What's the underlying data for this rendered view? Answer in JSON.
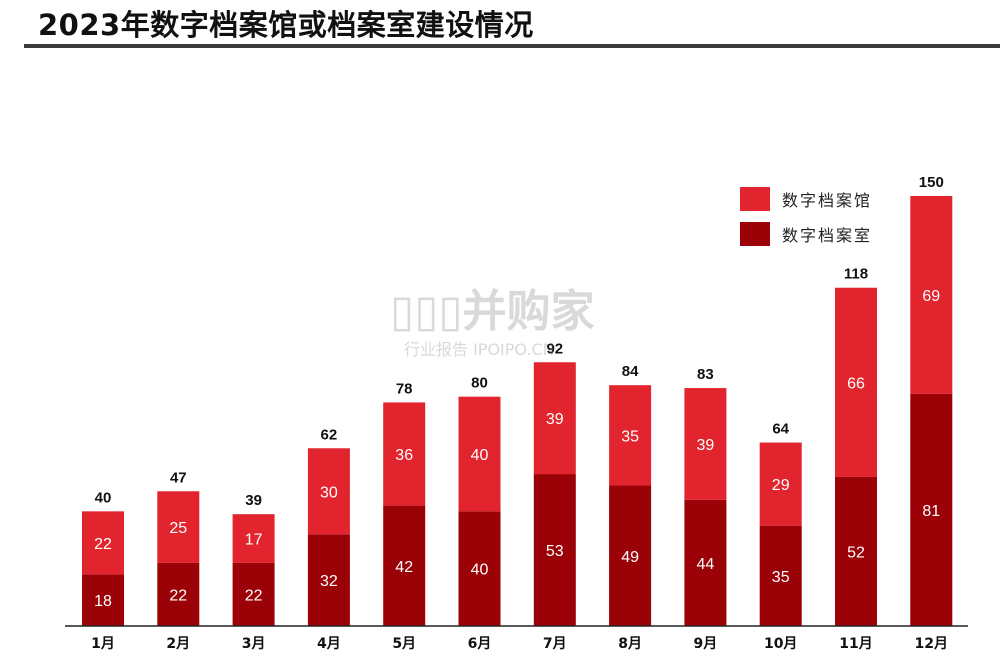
{
  "title": "2023年数字档案馆或档案室建设情况",
  "colors": {
    "top_series": "#e1242d",
    "bottom_series": "#9b0207",
    "axis": "#222222"
  },
  "watermark": {
    "logo": "▯▯▯并购家",
    "sub": "行业报告 IPOIPO.CN"
  },
  "chart_data": {
    "type": "bar",
    "stacked": true,
    "title": "2023年数字档案馆或档案室建设情况",
    "categories": [
      "1月",
      "2月",
      "3月",
      "4月",
      "5月",
      "6月",
      "7月",
      "8月",
      "9月",
      "10月",
      "11月",
      "12月"
    ],
    "series": [
      {
        "name": "数字档案室",
        "color": "#9b0207",
        "values": [
          18,
          22,
          22,
          32,
          42,
          40,
          53,
          49,
          44,
          35,
          52,
          81
        ]
      },
      {
        "name": "数字档案馆",
        "color": "#e1242d",
        "values": [
          22,
          25,
          17,
          30,
          36,
          40,
          39,
          35,
          39,
          29,
          66,
          69
        ]
      }
    ],
    "totals": [
      40,
      47,
      39,
      62,
      78,
      80,
      92,
      84,
      83,
      64,
      118,
      150
    ],
    "ylim": [
      0,
      150
    ],
    "grid": false,
    "legend_position": "upper-right"
  },
  "legend": [
    {
      "label": "数字档案馆",
      "color": "#e1242d"
    },
    {
      "label": "数字档案室",
      "color": "#9b0207"
    }
  ]
}
